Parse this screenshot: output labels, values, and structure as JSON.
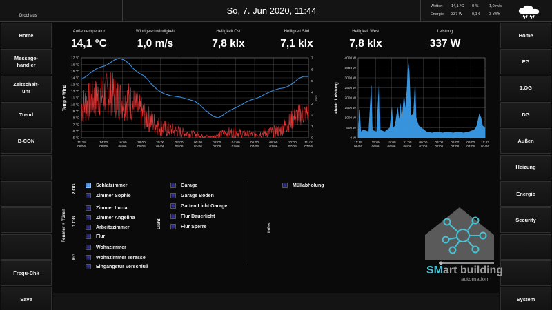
{
  "topbar": {
    "location": "Drochaus",
    "datetime": "So, 7. Jun 2020, 11:44",
    "weather": {
      "wetter_label": "Wetter:",
      "temp": "14,1 °C",
      "pct": "0 %",
      "wind": "1,0 m/s",
      "energie_label": "Energie:",
      "power": "337 W",
      "cost": "0,1 €",
      "energy": "3 kWh",
      "icon": "rain-cloud-icon"
    }
  },
  "nav_left": [
    "Home",
    "Message-\nhandler",
    "Zeitschalt-\nuhr",
    "Trend",
    "B-CON",
    "",
    "",
    "",
    "",
    "Frequ-Chk",
    "Save"
  ],
  "nav_right": [
    "Home",
    "EG",
    "1.OG",
    "DG",
    "Außen",
    "Heizung",
    "Energie",
    "Security",
    "",
    "",
    "System"
  ],
  "metrics": [
    {
      "label": "Außentemperatur",
      "value": "14,1 °C"
    },
    {
      "label": "Windgeschwindigkeit",
      "value": "1,0 m/s"
    },
    {
      "label": "Helligkeit Ost",
      "value": "7,8 klx"
    },
    {
      "label": "Helligkeit Süd",
      "value": "7,1 klx"
    },
    {
      "label": "Helligkeit West",
      "value": "7,8 klx"
    },
    {
      "label": "Leistung",
      "value": "337 W"
    }
  ],
  "chart_data": [
    {
      "type": "line",
      "ylabel": "Temp + Wind",
      "y2label": "m/s",
      "ylim": [
        5,
        17
      ],
      "y2lim": [
        0,
        7
      ],
      "y_ticks": [
        "17 °C",
        "16 °C",
        "15 °C",
        "14 °C",
        "13 °C",
        "12 °C",
        "11 °C",
        "10 °C",
        "9 °C",
        "8 °C",
        "7 °C",
        "6 °C",
        "5 °C"
      ],
      "y2_ticks": [
        "7",
        "6",
        "5",
        "4",
        "3",
        "2",
        "1",
        "0"
      ],
      "x_ticks": [
        [
          "11:39",
          "06/06"
        ],
        [
          "14:00",
          "06/06"
        ],
        [
          "16:00",
          "06/06"
        ],
        [
          "18:00",
          "06/06"
        ],
        [
          "20:00",
          "06/06"
        ],
        [
          "22:00",
          "06/06"
        ],
        [
          "00:00",
          "07/06"
        ],
        [
          "02:00",
          "07/06"
        ],
        [
          "04:00",
          "07/06"
        ],
        [
          "06:00",
          "07/06"
        ],
        [
          "08:00",
          "07/06"
        ],
        [
          "10:00",
          "07/06"
        ],
        [
          "11:42",
          "07/06"
        ]
      ],
      "x_hours": [
        0,
        2.35,
        4.35,
        6.35,
        8.35,
        10.35,
        12.35,
        14.35,
        16.35,
        18.35,
        20.35,
        22.35,
        24.05
      ],
      "series": [
        {
          "color": "#3a8fe0",
          "points": [
            [
              0,
              13.8
            ],
            [
              0.5,
              14.2
            ],
            [
              1,
              14.8
            ],
            [
              1.5,
              15.3
            ],
            [
              2,
              15.6
            ],
            [
              2.5,
              15.8
            ],
            [
              3,
              16.2
            ],
            [
              3.5,
              16.7
            ],
            [
              4,
              16.9
            ],
            [
              4.5,
              16.7
            ],
            [
              5,
              16.2
            ],
            [
              5.5,
              15.4
            ],
            [
              6,
              14.8
            ],
            [
              6.5,
              14.4
            ],
            [
              7,
              13.8
            ],
            [
              7.5,
              12.9
            ],
            [
              8,
              12.3
            ],
            [
              8.5,
              11.8
            ],
            [
              9,
              11.5
            ],
            [
              9.5,
              11.3
            ],
            [
              10,
              11.2
            ],
            [
              10.5,
              11.1
            ],
            [
              11,
              10.9
            ],
            [
              11.5,
              10.7
            ],
            [
              12,
              10.5
            ],
            [
              12.5,
              10.0
            ],
            [
              13,
              9.3
            ],
            [
              13.5,
              8.7
            ],
            [
              14,
              8.2
            ],
            [
              14.5,
              8.0
            ],
            [
              15,
              8.4
            ],
            [
              15.5,
              8.9
            ],
            [
              16,
              9.3
            ],
            [
              16.5,
              9.6
            ],
            [
              17,
              10.0
            ],
            [
              17.5,
              10.4
            ],
            [
              18,
              10.7
            ],
            [
              18.5,
              10.9
            ],
            [
              19,
              11.2
            ],
            [
              19.5,
              11.6
            ],
            [
              20,
              11.9
            ],
            [
              20.5,
              12.2
            ],
            [
              21,
              12.4
            ],
            [
              21.5,
              12.5
            ],
            [
              22,
              12.8
            ],
            [
              22.5,
              13.3
            ],
            [
              23,
              13.9
            ],
            [
              23.5,
              14.2
            ],
            [
              24.05,
              14.2
            ]
          ]
        },
        {
          "color": "#e23636",
          "envelope": [
            [
              0,
              1.0,
              4.5
            ],
            [
              1,
              1.5,
              5.0
            ],
            [
              2,
              1.8,
              5.5
            ],
            [
              3,
              2.0,
              6.0
            ],
            [
              4,
              1.5,
              5.2
            ],
            [
              5,
              1.5,
              5.0
            ],
            [
              6,
              1.0,
              4.0
            ],
            [
              7,
              0.5,
              3.0
            ],
            [
              8,
              0.2,
              2.0
            ],
            [
              9,
              0,
              1.5
            ],
            [
              10,
              0,
              1.2
            ],
            [
              11,
              0,
              0.8
            ],
            [
              12,
              0,
              0.6
            ],
            [
              13,
              0,
              0.3
            ],
            [
              14,
              0,
              0.2
            ],
            [
              15,
              0,
              0.8
            ],
            [
              16,
              0,
              1.0
            ],
            [
              17,
              0,
              0.8
            ],
            [
              18,
              0,
              0.6
            ],
            [
              19,
              0,
              0.8
            ],
            [
              20,
              0,
              1.0
            ],
            [
              21,
              0,
              1.2
            ],
            [
              22,
              0.5,
              2.2
            ],
            [
              23,
              1.0,
              3.0
            ],
            [
              24.05,
              1.2,
              3.2
            ]
          ]
        }
      ]
    },
    {
      "type": "area",
      "ylabel": "elektr. Leistung",
      "ylim": [
        0,
        4000
      ],
      "y_ticks": [
        "4000 W",
        "3500 W",
        "3000 W",
        "2500 W",
        "2000 W",
        "1500 W",
        "1000 W",
        "500 W",
        "0 W"
      ],
      "x_ticks": [
        [
          "11:39",
          "06/06"
        ],
        [
          "15:00",
          "06/06"
        ],
        [
          "18:00",
          "06/06"
        ],
        [
          "21:00",
          "06/06"
        ],
        [
          "00:00",
          "07/06"
        ],
        [
          "03:00",
          "07/06"
        ],
        [
          "06:00",
          "07/06"
        ],
        [
          "09:00",
          "07/06"
        ],
        [
          "11:43",
          "07/06"
        ]
      ],
      "x_hours": [
        0,
        3.35,
        6.35,
        9.35,
        12.35,
        15.35,
        18.35,
        21.35,
        24.07
      ],
      "series": [
        {
          "color": "#3a9be8",
          "points": [
            [
              0,
              300
            ],
            [
              0.3,
              1400
            ],
            [
              0.5,
              300
            ],
            [
              1,
              400
            ],
            [
              1.5,
              350
            ],
            [
              2,
              300
            ],
            [
              2.5,
              2600
            ],
            [
              2.7,
              400
            ],
            [
              3,
              350
            ],
            [
              3.5,
              300
            ],
            [
              4,
              2900
            ],
            [
              4.2,
              400
            ],
            [
              5,
              300
            ],
            [
              6,
              500
            ],
            [
              6.4,
              1500
            ],
            [
              6.6,
              500
            ],
            [
              7,
              600
            ],
            [
              7.5,
              1500
            ],
            [
              7.8,
              800
            ],
            [
              8,
              1700
            ],
            [
              8.3,
              900
            ],
            [
              8.7,
              2100
            ],
            [
              9,
              1400
            ],
            [
              9.3,
              2600
            ],
            [
              9.5,
              3800
            ],
            [
              9.7,
              3300
            ],
            [
              10,
              1100
            ],
            [
              10.5,
              1200
            ],
            [
              10.8,
              2800
            ],
            [
              11,
              1000
            ],
            [
              11.5,
              600
            ],
            [
              12,
              500
            ],
            [
              13,
              300
            ],
            [
              14,
              250
            ],
            [
              15,
              300
            ],
            [
              16,
              250
            ],
            [
              17,
              300
            ],
            [
              18,
              250
            ],
            [
              19,
              300
            ],
            [
              20,
              250
            ],
            [
              21,
              300
            ],
            [
              22,
              400
            ],
            [
              22.5,
              600
            ],
            [
              23,
              1200
            ],
            [
              23.3,
              1000
            ],
            [
              23.6,
              600
            ],
            [
              24.07,
              500
            ]
          ]
        }
      ]
    }
  ],
  "status_lists": {
    "fenster_label": "Fenster + Türen",
    "floors": [
      {
        "floor": "2.OG",
        "items": [
          {
            "label": "Schlafzimmer",
            "active": true
          },
          {
            "label": "Zimmer Sophie",
            "active": false
          }
        ]
      },
      {
        "floor": "1.OG",
        "items": [
          {
            "label": "Zimmer Lucia",
            "active": false
          },
          {
            "label": "Zimmer Angelina",
            "active": false
          },
          {
            "label": "Arbeitszimmer",
            "active": false
          },
          {
            "label": "Flur",
            "active": false
          }
        ]
      },
      {
        "floor": "EG",
        "items": [
          {
            "label": "Wohnzimmer",
            "active": false
          },
          {
            "label": "Wohnzimmer Terasse",
            "active": false
          },
          {
            "label": "Eingangstür Verschluß",
            "active": false
          }
        ]
      }
    ],
    "licht_label": "Licht",
    "licht": [
      {
        "label": "Garage",
        "active": false
      },
      {
        "label": "Garage Boden",
        "active": false
      },
      {
        "label": "Garten Licht Garage",
        "active": false
      },
      {
        "label": "Flur Dauerlicht",
        "active": false
      },
      {
        "label": "Flur Sperre",
        "active": false
      }
    ],
    "infos_label": "Infos",
    "infos": [
      {
        "label": "Müllabholung",
        "active": false
      }
    ]
  },
  "logo": {
    "sm": "SM",
    "art": "art building",
    "sub": "automation"
  }
}
